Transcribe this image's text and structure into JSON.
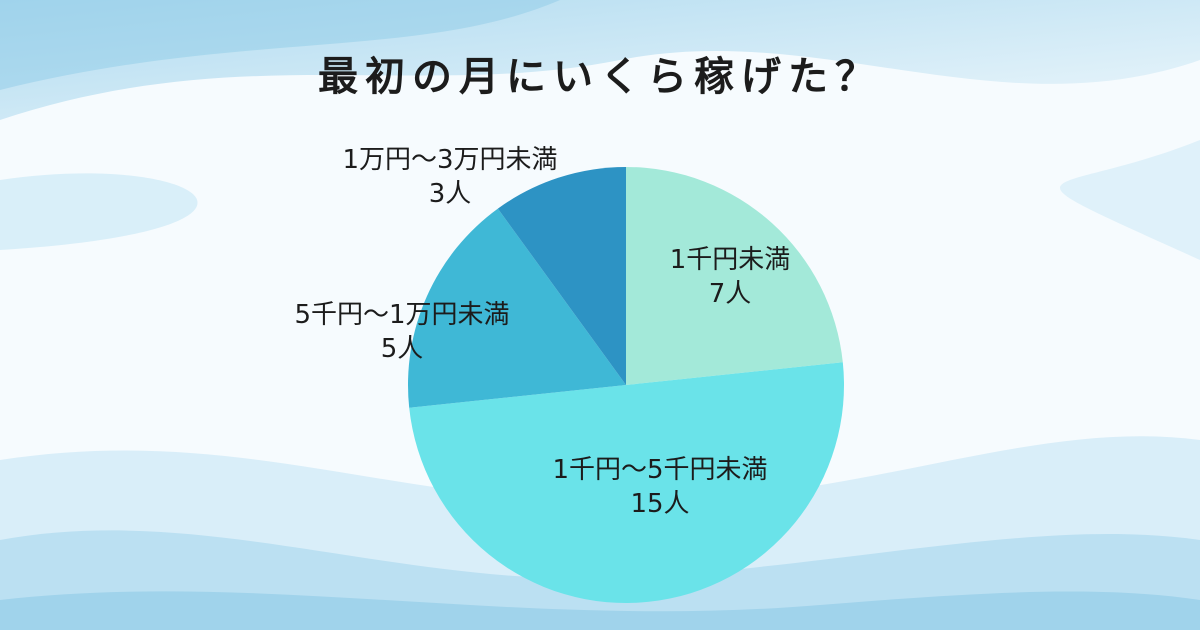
{
  "chart_data": {
    "type": "pie",
    "title": "最初の月にいくら稼げた？",
    "start": "12 o'clock",
    "direction": "clockwise",
    "slices": [
      {
        "category": "1千円未満",
        "value": 7,
        "value_label": "7人",
        "color": "#a3e9d9"
      },
      {
        "category": "1千円～5千円未満",
        "value": 15,
        "value_label": "15人",
        "color": "#6ae3e9"
      },
      {
        "category": "5千円～1万円未満",
        "value": 5,
        "value_label": "5人",
        "color": "#3fb8d6"
      },
      {
        "category": "1万円～3万円未満",
        "value": 3,
        "value_label": "3人",
        "color": "#2d93c4"
      }
    ]
  }
}
